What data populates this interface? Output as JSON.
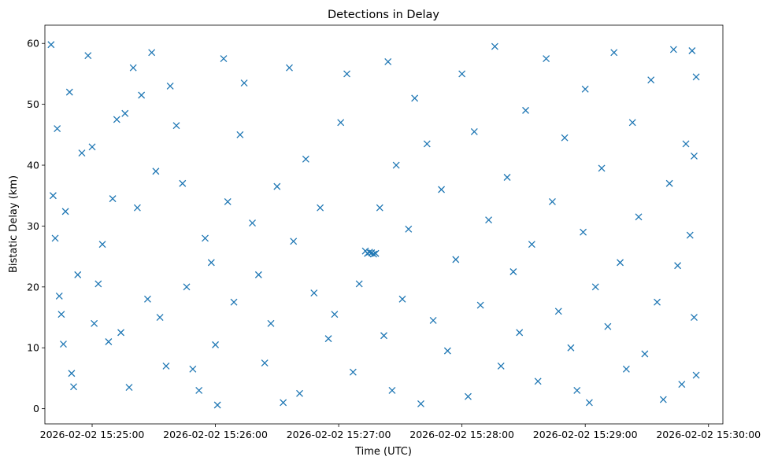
{
  "chart_data": {
    "type": "scatter",
    "title": "Detections in Delay",
    "xlabel": "Time (UTC)",
    "ylabel": "Bistatic Delay (km)",
    "x_ticks": [
      "2026-02-02 15:25:00",
      "2026-02-02 15:26:00",
      "2026-02-02 15:27:00",
      "2026-02-02 15:28:00",
      "2026-02-02 15:29:00",
      "2026-02-02 15:30:00"
    ],
    "y_ticks": [
      0,
      10,
      20,
      30,
      40,
      50,
      60
    ],
    "xlim": [
      "2026-02-02 15:24:37",
      "2026-02-02 15:30:07"
    ],
    "ylim": [
      -2.5,
      63
    ],
    "grid": false,
    "marker": "x",
    "series_color": "#1f77b4",
    "series": [
      {
        "points": [
          [
            "2026-02-02 15:24:40",
            59.8
          ],
          [
            "2026-02-02 15:24:41",
            35.0
          ],
          [
            "2026-02-02 15:24:42",
            28.0
          ],
          [
            "2026-02-02 15:24:43",
            46.0
          ],
          [
            "2026-02-02 15:24:44",
            18.5
          ],
          [
            "2026-02-02 15:24:45",
            15.5
          ],
          [
            "2026-02-02 15:24:46",
            10.6
          ],
          [
            "2026-02-02 15:24:47",
            32.4
          ],
          [
            "2026-02-02 15:24:49",
            52.0
          ],
          [
            "2026-02-02 15:24:50",
            5.8
          ],
          [
            "2026-02-02 15:24:51",
            3.6
          ],
          [
            "2026-02-02 15:24:53",
            22.0
          ],
          [
            "2026-02-02 15:24:55",
            42.0
          ],
          [
            "2026-02-02 15:24:58",
            58.0
          ],
          [
            "2026-02-02 15:25:00",
            43.0
          ],
          [
            "2026-02-02 15:25:01",
            14.0
          ],
          [
            "2026-02-02 15:25:03",
            20.5
          ],
          [
            "2026-02-02 15:25:05",
            27.0
          ],
          [
            "2026-02-02 15:25:08",
            11.0
          ],
          [
            "2026-02-02 15:25:10",
            34.5
          ],
          [
            "2026-02-02 15:25:12",
            47.5
          ],
          [
            "2026-02-02 15:25:14",
            12.5
          ],
          [
            "2026-02-02 15:25:16",
            48.5
          ],
          [
            "2026-02-02 15:25:18",
            3.5
          ],
          [
            "2026-02-02 15:25:20",
            56.0
          ],
          [
            "2026-02-02 15:25:22",
            33.0
          ],
          [
            "2026-02-02 15:25:24",
            51.5
          ],
          [
            "2026-02-02 15:25:27",
            18.0
          ],
          [
            "2026-02-02 15:25:29",
            58.5
          ],
          [
            "2026-02-02 15:25:31",
            39.0
          ],
          [
            "2026-02-02 15:25:33",
            15.0
          ],
          [
            "2026-02-02 15:25:36",
            7.0
          ],
          [
            "2026-02-02 15:25:38",
            53.0
          ],
          [
            "2026-02-02 15:25:41",
            46.5
          ],
          [
            "2026-02-02 15:25:44",
            37.0
          ],
          [
            "2026-02-02 15:25:46",
            20.0
          ],
          [
            "2026-02-02 15:25:49",
            6.5
          ],
          [
            "2026-02-02 15:25:52",
            3.0
          ],
          [
            "2026-02-02 15:25:55",
            28.0
          ],
          [
            "2026-02-02 15:25:58",
            24.0
          ],
          [
            "2026-02-02 15:26:00",
            10.5
          ],
          [
            "2026-02-02 15:26:01",
            0.6
          ],
          [
            "2026-02-02 15:26:04",
            57.5
          ],
          [
            "2026-02-02 15:26:06",
            34.0
          ],
          [
            "2026-02-02 15:26:09",
            17.5
          ],
          [
            "2026-02-02 15:26:12",
            45.0
          ],
          [
            "2026-02-02 15:26:14",
            53.5
          ],
          [
            "2026-02-02 15:26:18",
            30.5
          ],
          [
            "2026-02-02 15:26:21",
            22.0
          ],
          [
            "2026-02-02 15:26:24",
            7.5
          ],
          [
            "2026-02-02 15:26:27",
            14.0
          ],
          [
            "2026-02-02 15:26:30",
            36.5
          ],
          [
            "2026-02-02 15:26:33",
            1.0
          ],
          [
            "2026-02-02 15:26:36",
            56.0
          ],
          [
            "2026-02-02 15:26:38",
            27.5
          ],
          [
            "2026-02-02 15:26:41",
            2.5
          ],
          [
            "2026-02-02 15:26:44",
            41.0
          ],
          [
            "2026-02-02 15:26:48",
            19.0
          ],
          [
            "2026-02-02 15:26:51",
            33.0
          ],
          [
            "2026-02-02 15:26:55",
            11.5
          ],
          [
            "2026-02-02 15:26:58",
            15.5
          ],
          [
            "2026-02-02 15:27:01",
            47.0
          ],
          [
            "2026-02-02 15:27:04",
            55.0
          ],
          [
            "2026-02-02 15:27:07",
            6.0
          ],
          [
            "2026-02-02 15:27:10",
            20.5
          ],
          [
            "2026-02-02 15:27:13",
            25.9
          ],
          [
            "2026-02-02 15:27:14",
            25.5
          ],
          [
            "2026-02-02 15:27:15",
            25.7
          ],
          [
            "2026-02-02 15:27:16",
            25.6
          ],
          [
            "2026-02-02 15:27:17",
            25.4
          ],
          [
            "2026-02-02 15:27:18",
            25.5
          ],
          [
            "2026-02-02 15:27:20",
            33.0
          ],
          [
            "2026-02-02 15:27:22",
            12.0
          ],
          [
            "2026-02-02 15:27:24",
            57.0
          ],
          [
            "2026-02-02 15:27:26",
            3.0
          ],
          [
            "2026-02-02 15:27:28",
            40.0
          ],
          [
            "2026-02-02 15:27:31",
            18.0
          ],
          [
            "2026-02-02 15:27:34",
            29.5
          ],
          [
            "2026-02-02 15:27:37",
            51.0
          ],
          [
            "2026-02-02 15:27:40",
            0.8
          ],
          [
            "2026-02-02 15:27:43",
            43.5
          ],
          [
            "2026-02-02 15:27:46",
            14.5
          ],
          [
            "2026-02-02 15:27:50",
            36.0
          ],
          [
            "2026-02-02 15:27:53",
            9.5
          ],
          [
            "2026-02-02 15:27:57",
            24.5
          ],
          [
            "2026-02-02 15:28:00",
            55.0
          ],
          [
            "2026-02-02 15:28:03",
            2.0
          ],
          [
            "2026-02-02 15:28:06",
            45.5
          ],
          [
            "2026-02-02 15:28:09",
            17.0
          ],
          [
            "2026-02-02 15:28:13",
            31.0
          ],
          [
            "2026-02-02 15:28:16",
            59.5
          ],
          [
            "2026-02-02 15:28:19",
            7.0
          ],
          [
            "2026-02-02 15:28:22",
            38.0
          ],
          [
            "2026-02-02 15:28:25",
            22.5
          ],
          [
            "2026-02-02 15:28:28",
            12.5
          ],
          [
            "2026-02-02 15:28:31",
            49.0
          ],
          [
            "2026-02-02 15:28:34",
            27.0
          ],
          [
            "2026-02-02 15:28:37",
            4.5
          ],
          [
            "2026-02-02 15:28:41",
            57.5
          ],
          [
            "2026-02-02 15:28:44",
            34.0
          ],
          [
            "2026-02-02 15:28:47",
            16.0
          ],
          [
            "2026-02-02 15:28:50",
            44.5
          ],
          [
            "2026-02-02 15:28:53",
            10.0
          ],
          [
            "2026-02-02 15:28:56",
            3.0
          ],
          [
            "2026-02-02 15:28:59",
            29.0
          ],
          [
            "2026-02-02 15:29:00",
            52.5
          ],
          [
            "2026-02-02 15:29:02",
            1.0
          ],
          [
            "2026-02-02 15:29:05",
            20.0
          ],
          [
            "2026-02-02 15:29:08",
            39.5
          ],
          [
            "2026-02-02 15:29:11",
            13.5
          ],
          [
            "2026-02-02 15:29:14",
            58.5
          ],
          [
            "2026-02-02 15:29:17",
            24.0
          ],
          [
            "2026-02-02 15:29:20",
            6.5
          ],
          [
            "2026-02-02 15:29:23",
            47.0
          ],
          [
            "2026-02-02 15:29:26",
            31.5
          ],
          [
            "2026-02-02 15:29:29",
            9.0
          ],
          [
            "2026-02-02 15:29:32",
            54.0
          ],
          [
            "2026-02-02 15:29:35",
            17.5
          ],
          [
            "2026-02-02 15:29:38",
            1.5
          ],
          [
            "2026-02-02 15:29:41",
            37.0
          ],
          [
            "2026-02-02 15:29:43",
            59.0
          ],
          [
            "2026-02-02 15:29:45",
            23.5
          ],
          [
            "2026-02-02 15:29:47",
            4.0
          ],
          [
            "2026-02-02 15:29:49",
            43.5
          ],
          [
            "2026-02-02 15:29:51",
            28.5
          ],
          [
            "2026-02-02 15:29:52",
            58.8
          ],
          [
            "2026-02-02 15:29:53",
            41.5
          ],
          [
            "2026-02-02 15:29:53",
            15.0
          ],
          [
            "2026-02-02 15:29:54",
            54.5
          ],
          [
            "2026-02-02 15:29:54",
            5.5
          ]
        ]
      }
    ]
  }
}
